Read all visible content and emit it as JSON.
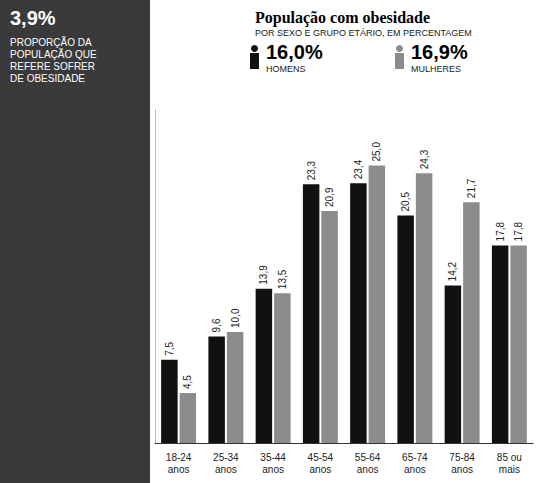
{
  "chart_data": {
    "type": "bar",
    "title": "População com obesidade",
    "subtitle": "POR SEXO E GRUPO ETÁRIO, EM PERCENTAGEM",
    "annotations": [
      "3,9%",
      "PROPORÇÃO DA POPULAÇÃO QUE REFERE SOFRER DE OBESIDADE"
    ],
    "categories": [
      "18-24 anos",
      "25-34 anos",
      "35-44 anos",
      "45-54 anos",
      "55-64 anos",
      "65-74 anos",
      "75-84 anos",
      "85 ou mais"
    ],
    "series": [
      {
        "name": "HOMENS",
        "color": "#111111",
        "total": 16.0,
        "total_label": "16,0%",
        "values": [
          7.5,
          9.6,
          13.9,
          23.3,
          23.4,
          20.5,
          14.2,
          17.8
        ],
        "value_labels": [
          "7,5",
          "9,6",
          "13,9",
          "23,3",
          "23,4",
          "20,5",
          "14,2",
          "17,8"
        ]
      },
      {
        "name": "MULHERES",
        "color": "#8c8c8c",
        "total": 16.9,
        "total_label": "16,9%",
        "values": [
          4.5,
          10.0,
          13.5,
          20.9,
          25.0,
          24.3,
          21.7,
          17.8
        ],
        "value_labels": [
          "4,5",
          "10,0",
          "13,5",
          "20,9",
          "25,0",
          "24,3",
          "21,7",
          "17,8"
        ]
      }
    ],
    "ylim": [
      0,
      30
    ],
    "tick_labels": "x",
    "grid": false,
    "data_labels": true,
    "legend": "top"
  }
}
